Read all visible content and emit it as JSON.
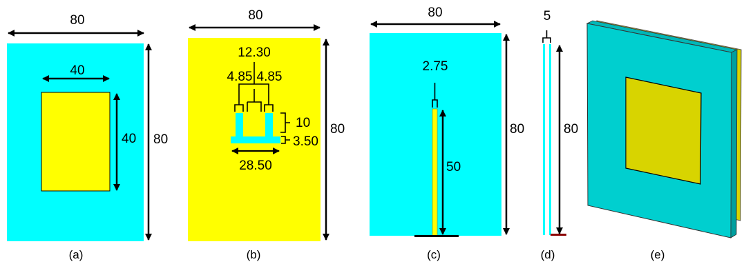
{
  "colors": {
    "cyan": "#00ffff",
    "yellow": "#ffff00",
    "olive": "#d8d400",
    "teal": "#00cfcf",
    "ground": "#8b0000"
  },
  "panels": {
    "a": {
      "caption": "(a)",
      "width_label": "80",
      "height_label": "80",
      "patch_width_label": "40",
      "patch_height_label": "40"
    },
    "b": {
      "caption": "(b)",
      "width_label": "80",
      "height_label": "80",
      "total_width_label": "12.30",
      "left_slot_label": "4.85",
      "right_slot_label": "4.85",
      "arm_height_label": "10",
      "base_height_label": "3.50",
      "base_width_label": "28.50"
    },
    "c": {
      "caption": "(c)",
      "width_label": "80",
      "height_label": "80",
      "feed_width_label": "2.75",
      "feed_length_label": "50"
    },
    "d": {
      "caption": "(d)",
      "thickness_label": "5",
      "height_label": "80"
    },
    "e": {
      "caption": "(e)"
    }
  }
}
